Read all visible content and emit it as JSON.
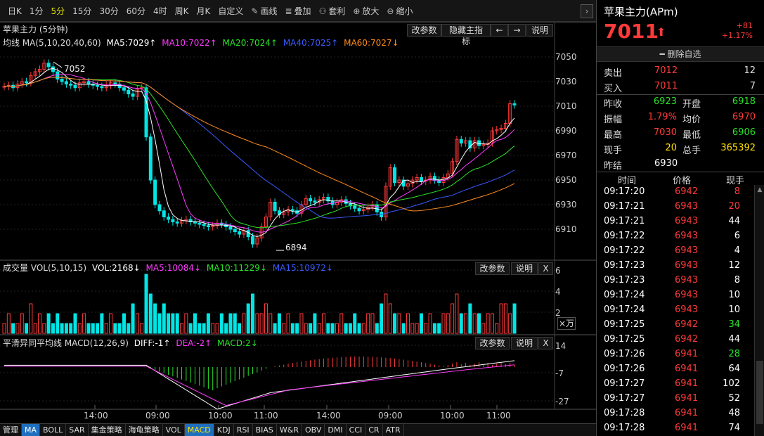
{
  "toolbar": {
    "periods": [
      "日K",
      "1分",
      "5分",
      "15分",
      "30分",
      "60分",
      "4时",
      "周K",
      "月K",
      "自定义"
    ],
    "active_period": "5分",
    "draw": "画线",
    "overlay": "叠加",
    "arbitrage": "套利",
    "zoom_in": "放大",
    "zoom_out": "缩小"
  },
  "main_panel": {
    "title": "苹果主力 (5分钟)",
    "btn_params": "改参数",
    "btn_hide": "隐藏主指标",
    "btn_left": "←",
    "btn_right": "→",
    "btn_help": "说明",
    "ma_label": "均线 MA(5,10,20,40,60)",
    "ma5": "MA5:7029↑",
    "ma10": "MA10:7022↑",
    "ma20": "MA20:7024↑",
    "ma40": "MA40:7025↑",
    "ma60": "MA60:7027↓",
    "price_ticks": [
      "7050",
      "7030",
      "7010",
      "6990",
      "6970",
      "6950",
      "6930",
      "6910"
    ],
    "high_marker": "7052",
    "low_marker": "6894"
  },
  "volume_panel": {
    "title": "成交量 VOL(5,10,15)",
    "vol": "VOL:2168↓",
    "ma5": "MA5:10084↓",
    "ma10": "MA10:11229↓",
    "ma15": "MA15:10972↓",
    "btn_params": "改参数",
    "btn_help": "说明",
    "btn_close": "X",
    "ticks": [
      "6",
      "4",
      "2"
    ],
    "unit": "×万"
  },
  "macd_panel": {
    "title": "平滑异同平均线 MACD(12,26,9)",
    "diff": "DIFF:-1↑",
    "dea": "DEA:-2↑",
    "macd": "MACD:2↓",
    "btn_params": "改参数",
    "btn_help": "说明",
    "btn_close": "X",
    "ticks": [
      "14",
      "-7",
      "-27"
    ]
  },
  "time_axis": [
    "14:00",
    "09:00",
    "10:00",
    "11:00",
    "14:00",
    "09:00",
    "10:00",
    "11:00"
  ],
  "bottom_tabs": [
    "管理",
    "MA",
    "BOLL",
    "SAR",
    "集金策略",
    "海龟策略",
    "VOL",
    "MACD",
    "KDJ",
    "RSI",
    "BIAS",
    "W&R",
    "OBV",
    "DMI",
    "CCI",
    "CR",
    "ATR"
  ],
  "quote": {
    "name": "苹果主力(APm)",
    "price": "7011",
    "change": "+81",
    "change_pct": "+1.17%",
    "delete_label": "删除自选",
    "sell_label": "卖出",
    "sell_price": "7012",
    "sell_vol": "12",
    "buy_label": "买入",
    "buy_price": "7011",
    "buy_vol": "7",
    "stats": [
      {
        "l1": "昨收",
        "v1": "6923",
        "c1": "green",
        "l2": "开盘",
        "v2": "6918",
        "c2": "green"
      },
      {
        "l1": "振幅",
        "v1": "1.79%",
        "c1": "red",
        "l2": "均价",
        "v2": "6970",
        "c2": "red"
      },
      {
        "l1": "最高",
        "v1": "7030",
        "c1": "red",
        "l2": "最低",
        "v2": "6906",
        "c2": "green"
      },
      {
        "l1": "现手",
        "v1": "20",
        "c1": "yellow",
        "l2": "总手",
        "v2": "365392",
        "c2": "yellow"
      }
    ],
    "settle_label": "昨结",
    "settle": "6930",
    "ticks_header": {
      "time": "时间",
      "price": "价格",
      "vol": "现手"
    },
    "ticks": [
      {
        "time": "09:17:20",
        "price": "6942",
        "vol": "8",
        "vc": "red"
      },
      {
        "time": "09:17:21",
        "price": "6943",
        "vol": "20",
        "vc": "red"
      },
      {
        "time": "09:17:21",
        "price": "6943",
        "vol": "44",
        "vc": "white"
      },
      {
        "time": "09:17:22",
        "price": "6943",
        "vol": "6",
        "vc": "white"
      },
      {
        "time": "09:17:22",
        "price": "6943",
        "vol": "4",
        "vc": "white"
      },
      {
        "time": "09:17:23",
        "price": "6943",
        "vol": "12",
        "vc": "white"
      },
      {
        "time": "09:17:23",
        "price": "6943",
        "vol": "8",
        "vc": "white"
      },
      {
        "time": "09:17:24",
        "price": "6943",
        "vol": "10",
        "vc": "white"
      },
      {
        "time": "09:17:24",
        "price": "6943",
        "vol": "10",
        "vc": "white"
      },
      {
        "time": "09:17:25",
        "price": "6942",
        "vol": "34",
        "vc": "green"
      },
      {
        "time": "09:17:25",
        "price": "6942",
        "vol": "44",
        "vc": "white"
      },
      {
        "time": "09:17:26",
        "price": "6941",
        "vol": "28",
        "vc": "green"
      },
      {
        "time": "09:17:26",
        "price": "6941",
        "vol": "64",
        "vc": "white"
      },
      {
        "time": "09:17:27",
        "price": "6941",
        "vol": "102",
        "vc": "white"
      },
      {
        "time": "09:17:27",
        "price": "6941",
        "vol": "52",
        "vc": "white"
      },
      {
        "time": "09:17:28",
        "price": "6941",
        "vol": "48",
        "vc": "white"
      },
      {
        "time": "09:17:28",
        "price": "6941",
        "vol": "74",
        "vc": "white"
      }
    ]
  },
  "colors": {
    "up": "#ff3a3a",
    "down": "#00e6e6",
    "ma5": "#ffffff",
    "ma10": "#ff3aff",
    "ma20": "#29e329",
    "ma40": "#3a5aff",
    "ma60": "#ff8c1a"
  }
}
